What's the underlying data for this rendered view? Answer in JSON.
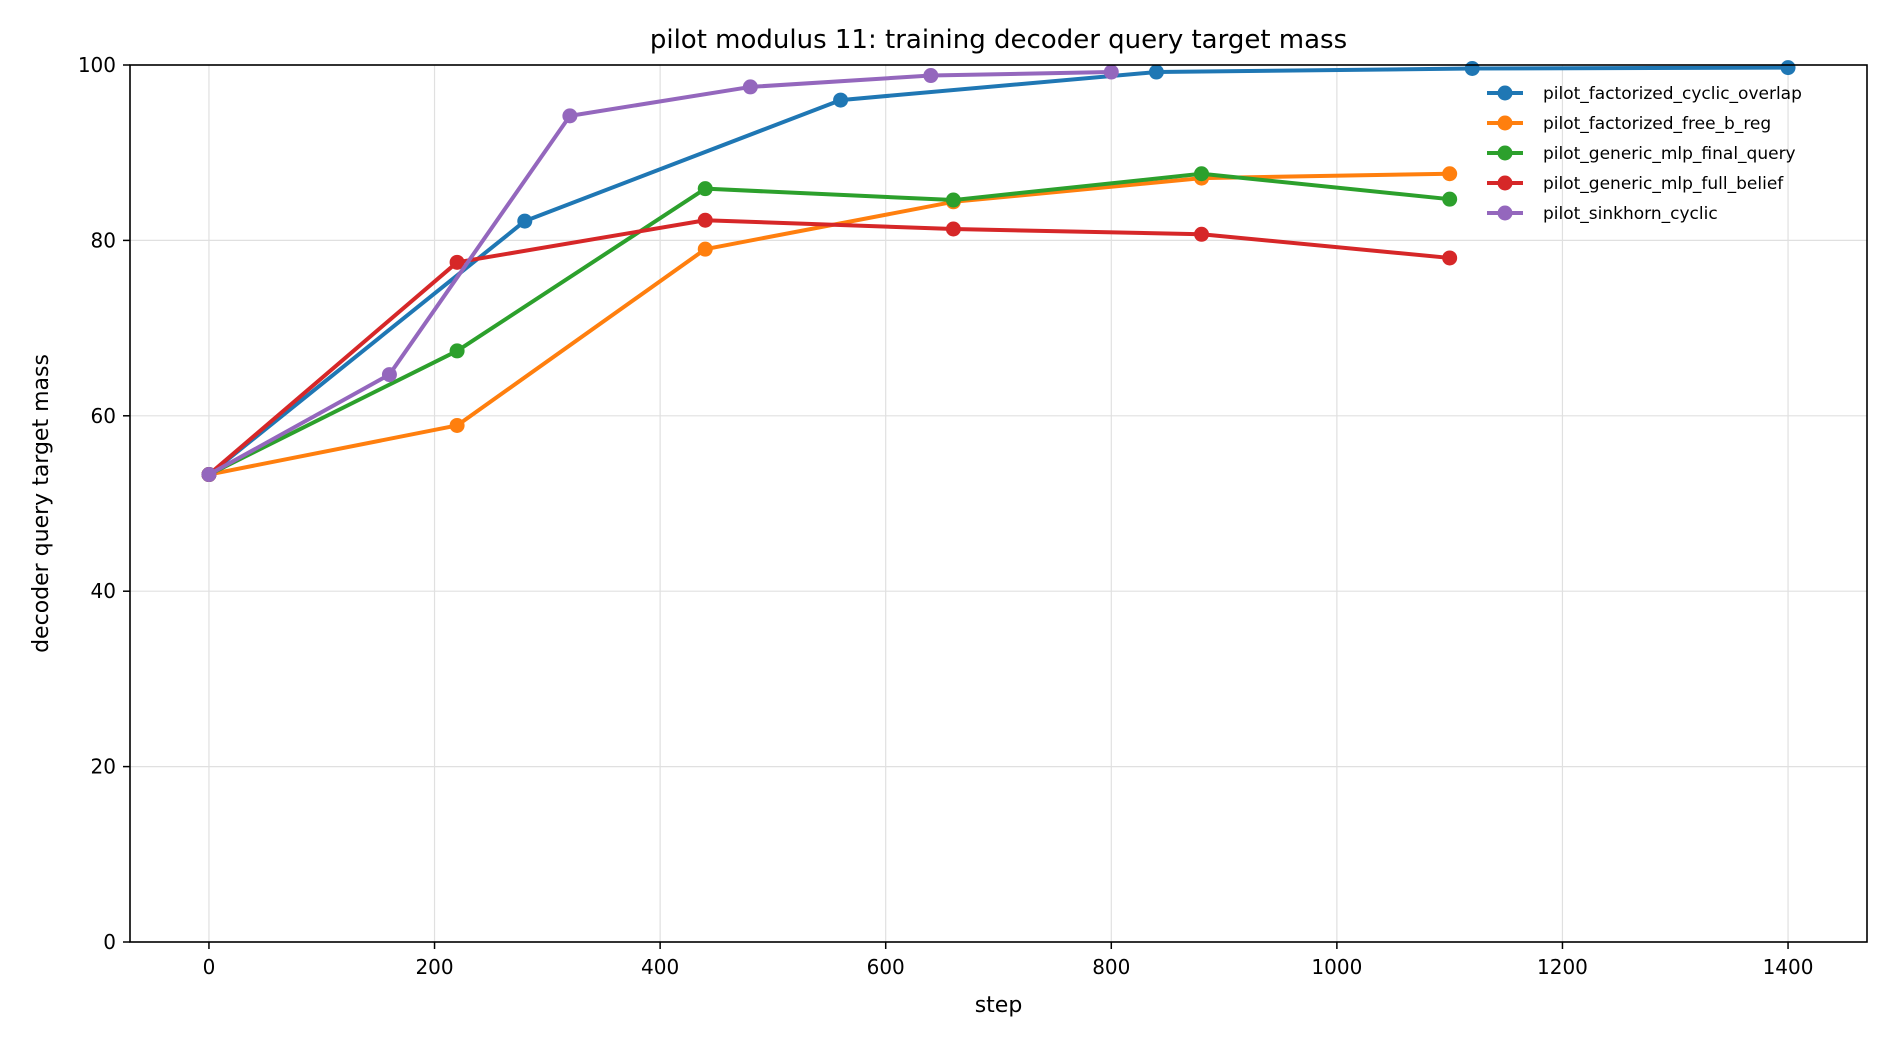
{
  "chart_data": {
    "type": "line",
    "title": "pilot modulus 11: training decoder query target mass",
    "xlabel": "step",
    "ylabel": "decoder query target mass",
    "xlim": [
      -70,
      1470
    ],
    "ylim": [
      0,
      100
    ],
    "xticks": [
      0,
      200,
      400,
      600,
      800,
      1000,
      1200,
      1400
    ],
    "yticks": [
      0,
      20,
      40,
      60,
      80,
      100
    ],
    "grid": true,
    "legend_position": "top-right",
    "series": [
      {
        "name": "pilot_factorized_cyclic_overlap",
        "color": "#1f77b4",
        "x": [
          0,
          280,
          560,
          840,
          1120,
          1400
        ],
        "y": [
          53.3,
          82.2,
          96.0,
          99.2,
          99.6,
          99.7
        ]
      },
      {
        "name": "pilot_factorized_free_b_reg",
        "color": "#ff7f0e",
        "x": [
          0,
          220,
          440,
          660,
          880,
          1100
        ],
        "y": [
          53.3,
          58.9,
          79.0,
          84.4,
          87.1,
          87.6
        ]
      },
      {
        "name": "pilot_generic_mlp_final_query",
        "color": "#2ca02c",
        "x": [
          0,
          220,
          440,
          660,
          880,
          1100
        ],
        "y": [
          53.3,
          67.4,
          85.9,
          84.6,
          87.6,
          84.7
        ]
      },
      {
        "name": "pilot_generic_mlp_full_belief",
        "color": "#d62728",
        "x": [
          0,
          220,
          440,
          660,
          880,
          1100
        ],
        "y": [
          53.3,
          77.5,
          82.3,
          81.3,
          80.7,
          78.0
        ]
      },
      {
        "name": "pilot_sinkhorn_cyclic",
        "color": "#9467bd",
        "x": [
          0,
          160,
          320,
          480,
          640,
          800
        ],
        "y": [
          53.3,
          64.7,
          94.2,
          97.5,
          98.8,
          99.2
        ]
      }
    ]
  }
}
